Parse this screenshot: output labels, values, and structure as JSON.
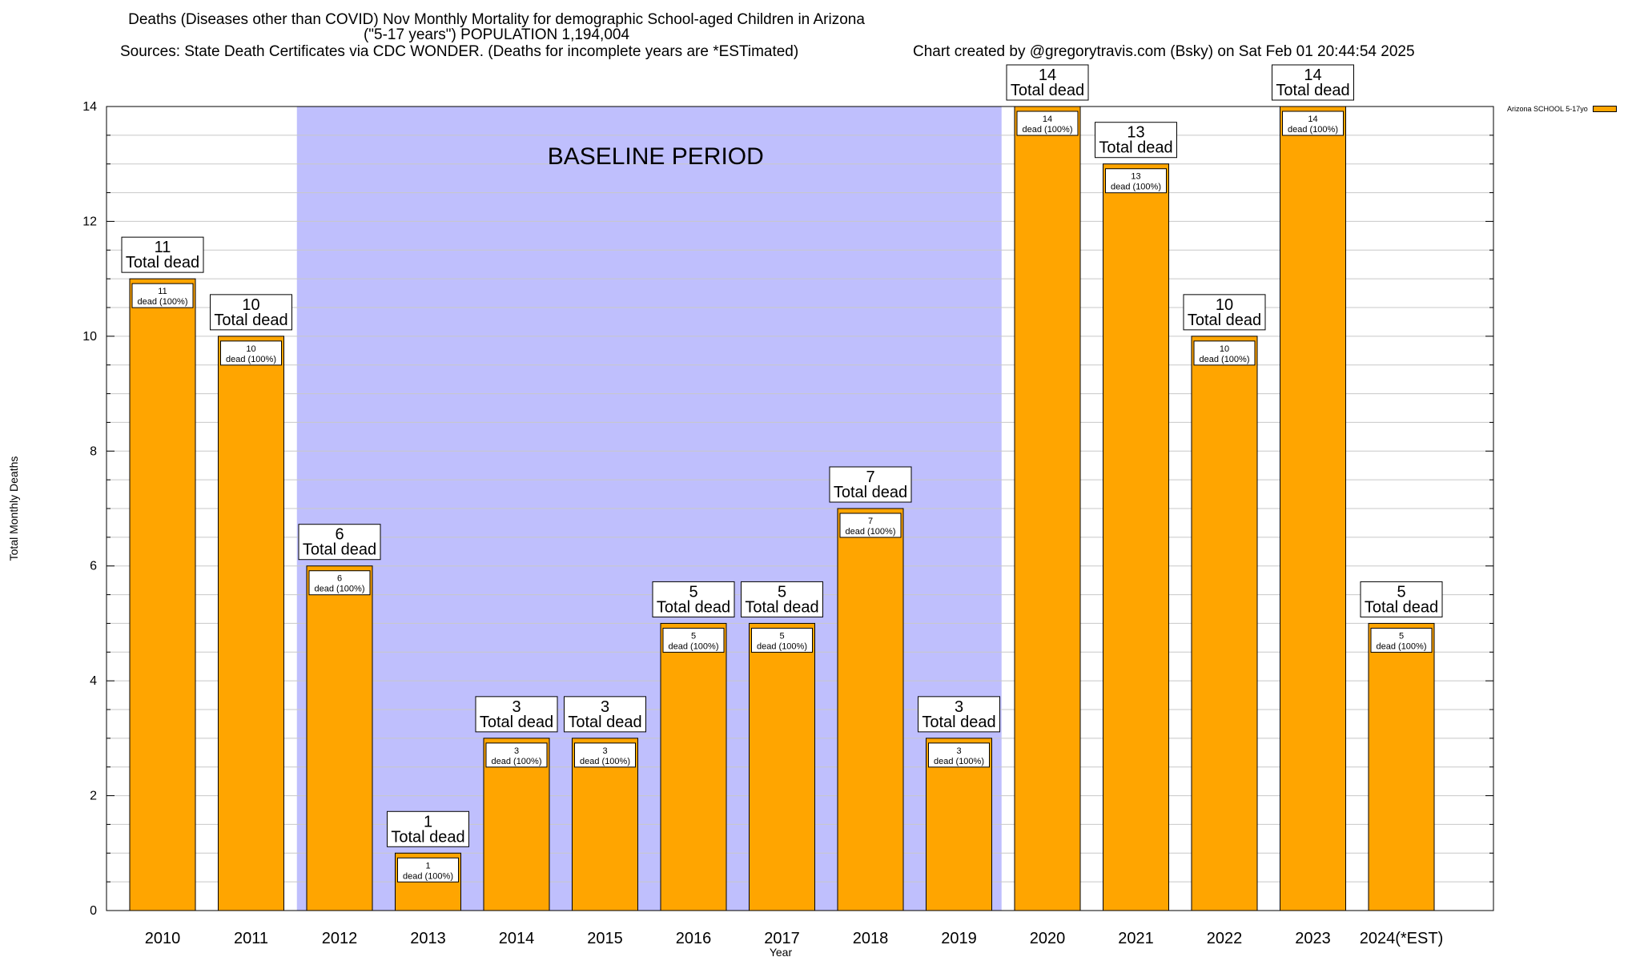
{
  "chart_data": {
    "type": "bar",
    "title": "Deaths (Diseases other than COVID) Nov Monthly Mortality for demographic School-aged Children in Arizona",
    "subtitle": "(\"5-17 years\") POPULATION 1,194,004",
    "source": "Sources: State Death Certificates via CDC WONDER. (Deaths for incomplete years are *ESTimated)",
    "credit": "Chart created by @gregorytravis.com (Bsky) on Sat Feb 01 20:44:54 2025",
    "xlabel": "Year",
    "ylabel": "Total Monthly Deaths",
    "ylim": [
      0,
      14
    ],
    "yticks": [
      "0",
      "2",
      "4",
      "6",
      "8",
      "10",
      "12",
      "14"
    ],
    "categories": [
      "2010",
      "2011",
      "2012",
      "2013",
      "2014",
      "2015",
      "2016",
      "2017",
      "2018",
      "2019",
      "2020",
      "2021",
      "2022",
      "2023",
      "2024(*EST)"
    ],
    "series": [
      {
        "name": "Arizona SCHOOL 5-17yo",
        "values": [
          11,
          10,
          6,
          1,
          3,
          3,
          5,
          5,
          7,
          3,
          14,
          13,
          10,
          14,
          5
        ]
      }
    ],
    "total_label_suffix": "Total dead",
    "inner_label_suffix": "dead (100%)",
    "baseline": {
      "label": "BASELINE PERIOD",
      "start": "2012",
      "end": "2019"
    },
    "legend_position": "top-right",
    "colors": {
      "bar": "#ffa500",
      "baseline_shade": "#bfbffd",
      "grid": "#c8c8c8"
    }
  }
}
